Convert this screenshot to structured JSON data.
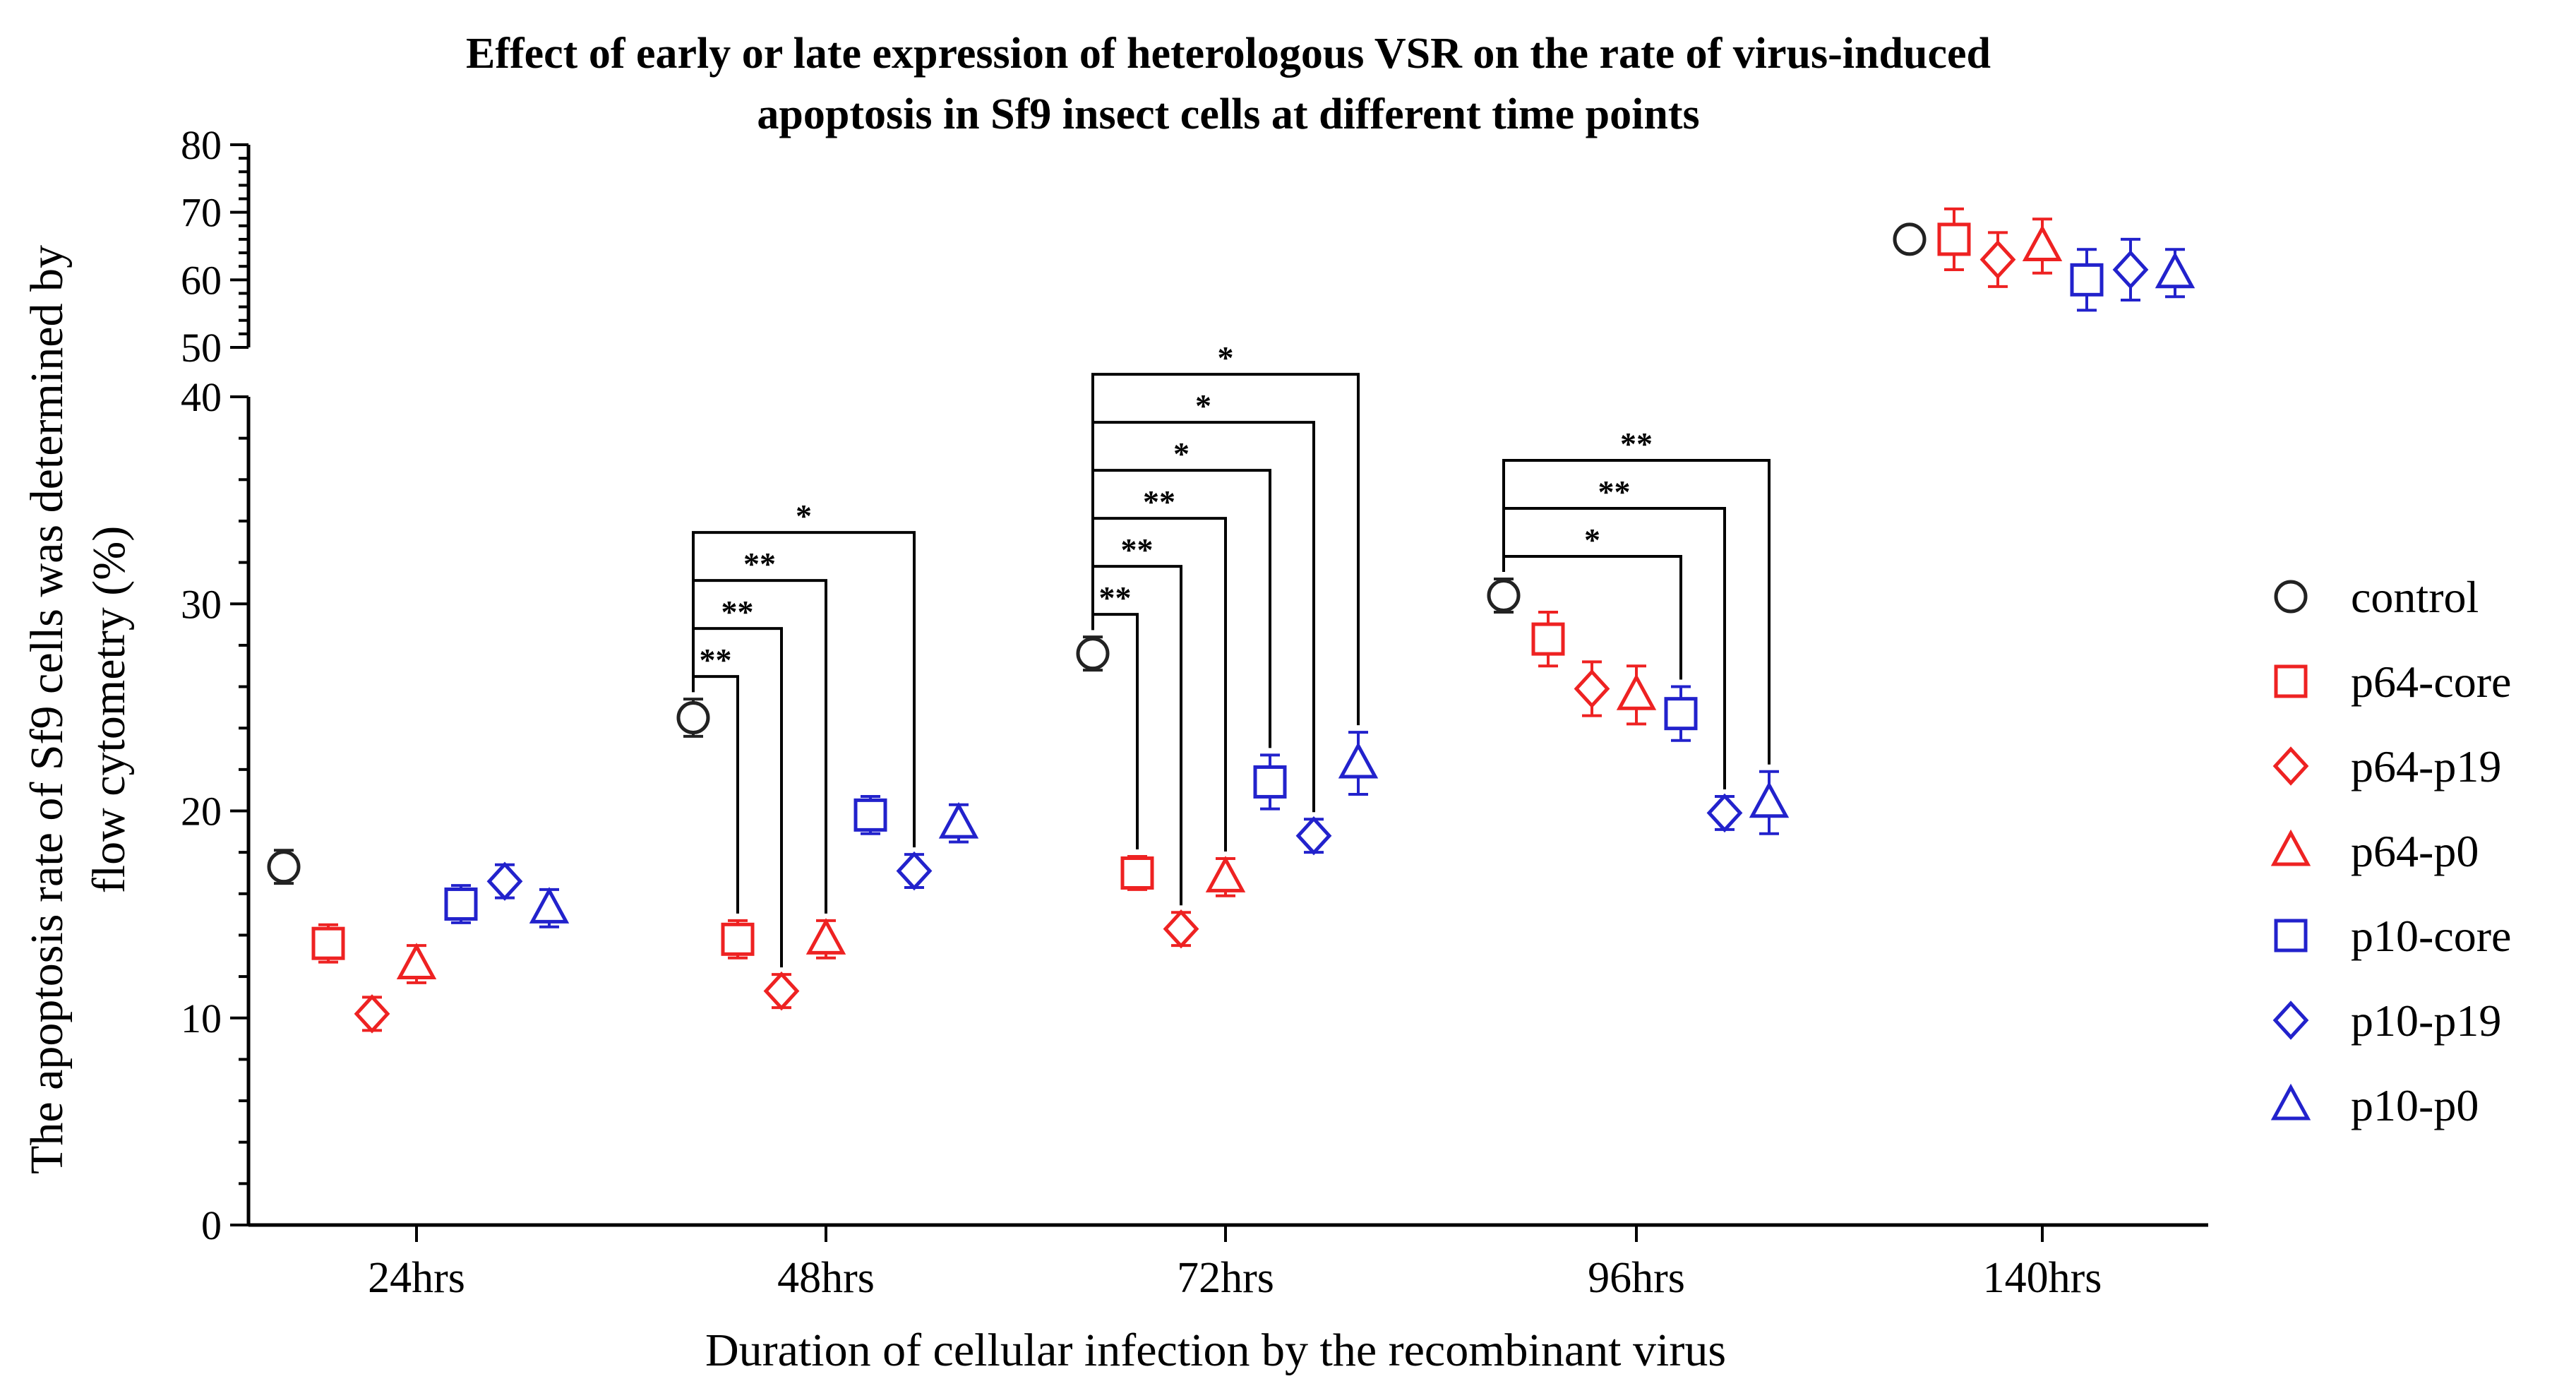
{
  "chart_data": {
    "type": "scatter",
    "title": "Effect of early or late expression of heterologous VSR on the rate of virus-induced apoptosis in Sf9 insect cells at different time points",
    "title_lines": [
      "Effect of early or late expression of heterologous VSR on the rate of virus-induced",
      "apoptosis in Sf9 insect cells at different time points"
    ],
    "xlabel": "Duration of cellular infection by the recombinant virus",
    "ylabel": "The apoptosis rate of Sf9 cells was determined by flow cytometry (%)",
    "ylabel_lines": [
      "The apoptosis rate of Sf9 cells was determined by",
      "flow cytometry (%)"
    ],
    "categories": [
      "24hrs",
      "48hrs",
      "72hrs",
      "96hrs",
      "140hrs"
    ],
    "y_axis_break": {
      "lower_range": [
        0,
        40
      ],
      "upper_range": [
        50,
        80
      ]
    },
    "yticks_lower": [
      "0",
      "10",
      "20",
      "30",
      "40"
    ],
    "yticks_upper": [
      "50",
      "60",
      "70",
      "80"
    ],
    "legend_position": "right",
    "grid": false,
    "colors": {
      "control": "#222222",
      "p64": "#ee2222",
      "p10": "#2222cc"
    },
    "series": [
      {
        "name": "control",
        "marker": "circle",
        "color": "#222222",
        "values": [
          17.3,
          24.5,
          27.6,
          30.4,
          66.0
        ],
        "errors": [
          0.8,
          0.9,
          0.8,
          0.8,
          1.5
        ]
      },
      {
        "name": "p64-core",
        "marker": "square",
        "color": "#ee2222",
        "values": [
          13.6,
          13.8,
          17.0,
          28.3,
          66.0
        ],
        "errors": [
          0.9,
          0.9,
          0.8,
          1.3,
          4.5
        ]
      },
      {
        "name": "p64-p19",
        "marker": "diamond",
        "color": "#ee2222",
        "values": [
          10.2,
          11.3,
          14.3,
          25.9,
          63.0
        ],
        "errors": [
          0.8,
          0.8,
          0.8,
          1.3,
          4.0
        ]
      },
      {
        "name": "p64-p0",
        "marker": "triangle",
        "color": "#ee2222",
        "values": [
          12.6,
          13.8,
          16.8,
          25.6,
          65.0
        ],
        "errors": [
          0.9,
          0.9,
          0.9,
          1.4,
          4.0
        ]
      },
      {
        "name": "p10-core",
        "marker": "square",
        "color": "#2222cc",
        "values": [
          15.5,
          19.8,
          21.4,
          24.7,
          60.0
        ],
        "errors": [
          0.9,
          0.9,
          1.3,
          1.3,
          4.5
        ]
      },
      {
        "name": "p10-p19",
        "marker": "diamond",
        "color": "#2222cc",
        "values": [
          16.6,
          17.1,
          18.8,
          19.9,
          61.5
        ],
        "errors": [
          0.8,
          0.8,
          0.8,
          0.8,
          4.5
        ]
      },
      {
        "name": "p10-p0",
        "marker": "triangle",
        "color": "#2222cc",
        "values": [
          15.3,
          19.4,
          22.3,
          20.4,
          61.0
        ],
        "errors": [
          0.9,
          0.9,
          1.5,
          1.5,
          3.5
        ]
      }
    ],
    "annotations": [
      {
        "group": "48hrs",
        "from": "control",
        "to": "p64-core",
        "label": "**"
      },
      {
        "group": "48hrs",
        "from": "control",
        "to": "p64-p19",
        "label": "**"
      },
      {
        "group": "48hrs",
        "from": "control",
        "to": "p64-p0",
        "label": "**"
      },
      {
        "group": "48hrs",
        "from": "control",
        "to": "p10-p19",
        "label": "*"
      },
      {
        "group": "72hrs",
        "from": "control",
        "to": "p64-core",
        "label": "**"
      },
      {
        "group": "72hrs",
        "from": "control",
        "to": "p64-p19",
        "label": "**"
      },
      {
        "group": "72hrs",
        "from": "control",
        "to": "p64-p0",
        "label": "**"
      },
      {
        "group": "72hrs",
        "from": "control",
        "to": "p10-core",
        "label": "*"
      },
      {
        "group": "72hrs",
        "from": "control",
        "to": "p10-p19",
        "label": "*"
      },
      {
        "group": "72hrs",
        "from": "control",
        "to": "p10-p0",
        "label": "*"
      },
      {
        "group": "96hrs",
        "from": "control",
        "to": "p10-core",
        "label": "*"
      },
      {
        "group": "96hrs",
        "from": "control",
        "to": "p10-p19",
        "label": "**"
      },
      {
        "group": "96hrs",
        "from": "control",
        "to": "p10-p0",
        "label": "**"
      }
    ]
  }
}
